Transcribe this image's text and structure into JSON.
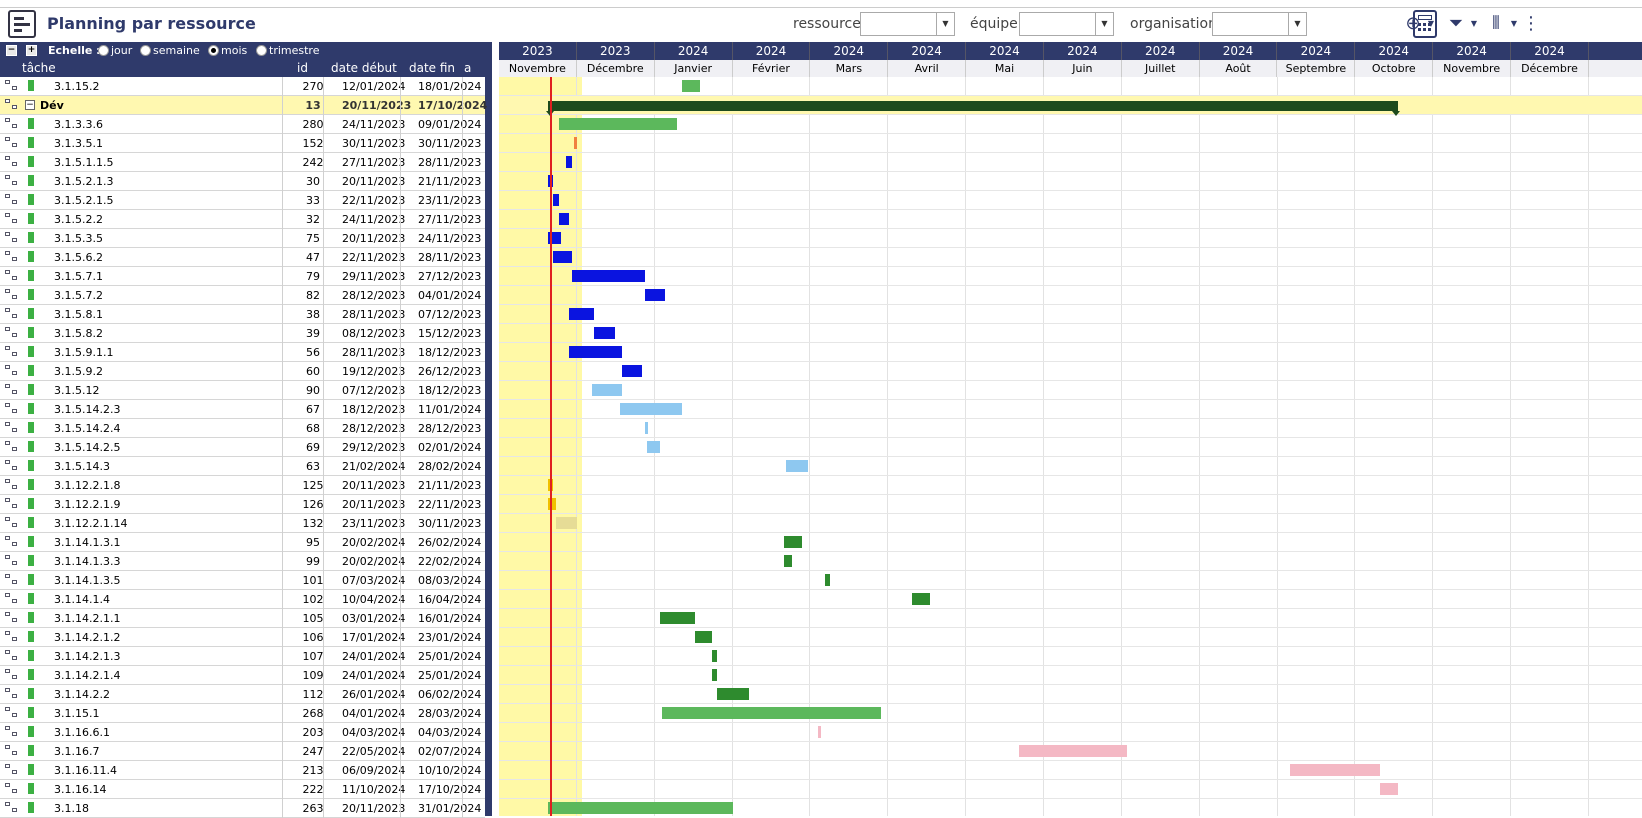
{
  "header": {
    "title": "Planning par ressource",
    "filters": [
      {
        "label": "ressource",
        "value": ""
      },
      {
        "label": "équipe",
        "value": ""
      },
      {
        "label": "organisation",
        "value": ""
      }
    ],
    "icons": [
      "calculator-icon",
      "add-circle-icon",
      "filter-icon",
      "columns-icon",
      "more-vertical-icon"
    ]
  },
  "scale": {
    "label": "Echelle :",
    "options": [
      {
        "label": "jour",
        "selected": false
      },
      {
        "label": "semaine",
        "selected": false
      },
      {
        "label": "mois",
        "selected": true
      },
      {
        "label": "trimestre",
        "selected": false
      }
    ]
  },
  "columns": {
    "task": "tâche",
    "id": "id",
    "start": "date début",
    "end": "date fin",
    "extra": "a"
  },
  "timeline": {
    "months": [
      {
        "year": "2023",
        "month": "Novembre"
      },
      {
        "year": "2023",
        "month": "Décembre"
      },
      {
        "year": "2024",
        "month": "Janvier"
      },
      {
        "year": "2024",
        "month": "Février"
      },
      {
        "year": "2024",
        "month": "Mars"
      },
      {
        "year": "2024",
        "month": "Avril"
      },
      {
        "year": "2024",
        "month": "Mai"
      },
      {
        "year": "2024",
        "month": "Juin"
      },
      {
        "year": "2024",
        "month": "Juillet"
      },
      {
        "year": "2024",
        "month": "Août"
      },
      {
        "year": "2024",
        "month": "Septembre"
      },
      {
        "year": "2024",
        "month": "Octobre"
      },
      {
        "year": "2024",
        "month": "Novembre"
      },
      {
        "year": "2024",
        "month": "Décembre"
      }
    ],
    "today": "2023-11-21"
  },
  "colors": {
    "navy": "#2f3a6b",
    "blue": "#0a14e0",
    "lightblue": "#8ec8f0",
    "green": "#5cb85c",
    "darkgreen": "#2e8b2e",
    "orange": "#f08040",
    "yellow": "#f0c000",
    "khaki": "#e6dc96",
    "pink": "#f4b8c4",
    "today": "#e02020"
  },
  "rows": [
    {
      "name": "3.1.15.2",
      "id": "270",
      "start": "12/01/2024",
      "end": "18/01/2024",
      "color": "green"
    },
    {
      "name": "Dév",
      "id": "13",
      "start": "20/11/2023",
      "end": "17/10/2024",
      "group": true
    },
    {
      "name": "3.1.3.3.6",
      "id": "280",
      "start": "24/11/2023",
      "end": "09/01/2024",
      "color": "green"
    },
    {
      "name": "3.1.3.5.1",
      "id": "152",
      "start": "30/11/2023",
      "end": "30/11/2023",
      "color": "orange"
    },
    {
      "name": "3.1.5.1.1.5",
      "id": "242",
      "start": "27/11/2023",
      "end": "28/11/2023",
      "color": "blue"
    },
    {
      "name": "3.1.5.2.1.3",
      "id": "30",
      "start": "20/11/2023",
      "end": "21/11/2023",
      "color": "blue"
    },
    {
      "name": "3.1.5.2.1.5",
      "id": "33",
      "start": "22/11/2023",
      "end": "23/11/2023",
      "color": "blue"
    },
    {
      "name": "3.1.5.2.2",
      "id": "32",
      "start": "24/11/2023",
      "end": "27/11/2023",
      "color": "blue"
    },
    {
      "name": "3.1.5.3.5",
      "id": "75",
      "start": "20/11/2023",
      "end": "24/11/2023",
      "color": "blue"
    },
    {
      "name": "3.1.5.6.2",
      "id": "47",
      "start": "22/11/2023",
      "end": "28/11/2023",
      "color": "blue"
    },
    {
      "name": "3.1.5.7.1",
      "id": "79",
      "start": "29/11/2023",
      "end": "27/12/2023",
      "color": "blue"
    },
    {
      "name": "3.1.5.7.2",
      "id": "82",
      "start": "28/12/2023",
      "end": "04/01/2024",
      "color": "blue"
    },
    {
      "name": "3.1.5.8.1",
      "id": "38",
      "start": "28/11/2023",
      "end": "07/12/2023",
      "color": "blue"
    },
    {
      "name": "3.1.5.8.2",
      "id": "39",
      "start": "08/12/2023",
      "end": "15/12/2023",
      "color": "blue"
    },
    {
      "name": "3.1.5.9.1.1",
      "id": "56",
      "start": "28/11/2023",
      "end": "18/12/2023",
      "color": "blue"
    },
    {
      "name": "3.1.5.9.2",
      "id": "60",
      "start": "19/12/2023",
      "end": "26/12/2023",
      "color": "blue"
    },
    {
      "name": "3.1.5.12",
      "id": "90",
      "start": "07/12/2023",
      "end": "18/12/2023",
      "color": "lightblue"
    },
    {
      "name": "3.1.5.14.2.3",
      "id": "67",
      "start": "18/12/2023",
      "end": "11/01/2024",
      "color": "lightblue"
    },
    {
      "name": "3.1.5.14.2.4",
      "id": "68",
      "start": "28/12/2023",
      "end": "28/12/2023",
      "color": "lightblue"
    },
    {
      "name": "3.1.5.14.2.5",
      "id": "69",
      "start": "29/12/2023",
      "end": "02/01/2024",
      "color": "lightblue"
    },
    {
      "name": "3.1.5.14.3",
      "id": "63",
      "start": "21/02/2024",
      "end": "28/02/2024",
      "color": "lightblue"
    },
    {
      "name": "3.1.12.2.1.8",
      "id": "125",
      "start": "20/11/2023",
      "end": "21/11/2023",
      "color": "yellow"
    },
    {
      "name": "3.1.12.2.1.9",
      "id": "126",
      "start": "20/11/2023",
      "end": "22/11/2023",
      "color": "yellow"
    },
    {
      "name": "3.1.12.2.1.14",
      "id": "132",
      "start": "23/11/2023",
      "end": "30/11/2023",
      "color": "khaki"
    },
    {
      "name": "3.1.14.1.3.1",
      "id": "95",
      "start": "20/02/2024",
      "end": "26/02/2024",
      "color": "darkgreen"
    },
    {
      "name": "3.1.14.1.3.3",
      "id": "99",
      "start": "20/02/2024",
      "end": "22/02/2024",
      "color": "darkgreen"
    },
    {
      "name": "3.1.14.1.3.5",
      "id": "101",
      "start": "07/03/2024",
      "end": "08/03/2024",
      "color": "darkgreen"
    },
    {
      "name": "3.1.14.1.4",
      "id": "102",
      "start": "10/04/2024",
      "end": "16/04/2024",
      "color": "darkgreen"
    },
    {
      "name": "3.1.14.2.1.1",
      "id": "105",
      "start": "03/01/2024",
      "end": "16/01/2024",
      "color": "darkgreen"
    },
    {
      "name": "3.1.14.2.1.2",
      "id": "106",
      "start": "17/01/2024",
      "end": "23/01/2024",
      "color": "darkgreen"
    },
    {
      "name": "3.1.14.2.1.3",
      "id": "107",
      "start": "24/01/2024",
      "end": "25/01/2024",
      "color": "darkgreen"
    },
    {
      "name": "3.1.14.2.1.4",
      "id": "109",
      "start": "24/01/2024",
      "end": "25/01/2024",
      "color": "darkgreen"
    },
    {
      "name": "3.1.14.2.2",
      "id": "112",
      "start": "26/01/2024",
      "end": "06/02/2024",
      "color": "darkgreen"
    },
    {
      "name": "3.1.15.1",
      "id": "268",
      "start": "04/01/2024",
      "end": "28/03/2024",
      "color": "green"
    },
    {
      "name": "3.1.16.6.1",
      "id": "203",
      "start": "04/03/2024",
      "end": "04/03/2024",
      "color": "pink"
    },
    {
      "name": "3.1.16.7",
      "id": "247",
      "start": "22/05/2024",
      "end": "02/07/2024",
      "color": "pink"
    },
    {
      "name": "3.1.16.11.4",
      "id": "213",
      "start": "06/09/2024",
      "end": "10/10/2024",
      "color": "pink"
    },
    {
      "name": "3.1.16.14",
      "id": "222",
      "start": "11/10/2024",
      "end": "17/10/2024",
      "color": "pink"
    },
    {
      "name": "3.1.18",
      "id": "263",
      "start": "20/11/2023",
      "end": "31/01/2024",
      "color": "green"
    }
  ]
}
